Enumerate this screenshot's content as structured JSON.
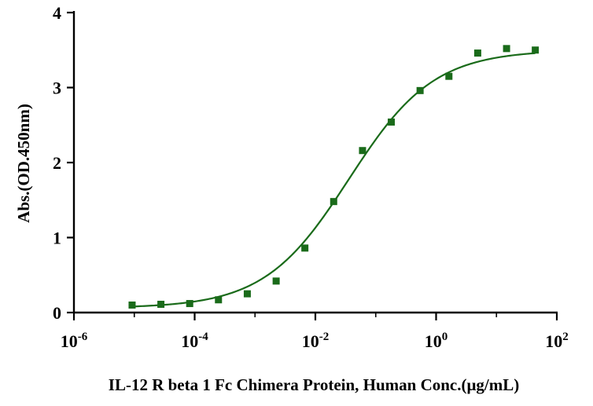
{
  "chart_data": {
    "type": "scatter",
    "xscale": "log",
    "xlim": [
      1e-06,
      100
    ],
    "ylim": [
      0,
      4
    ],
    "xlabel": "IL-12 R beta 1 Fc Chimera Protein, Human  Conc.(μg/mL)",
    "ylabel": "Abs.(OD.450nm)",
    "y_ticks": [
      "0",
      "1",
      "2",
      "3",
      "4"
    ],
    "x_ticks": [
      {
        "base": "10",
        "exp": "-6"
      },
      {
        "base": "10",
        "exp": "-4"
      },
      {
        "base": "10",
        "exp": "-2"
      },
      {
        "base": "10",
        "exp": "0"
      },
      {
        "base": "10",
        "exp": "2"
      }
    ],
    "x_tick_values": [
      1e-06,
      0.0001,
      0.01,
      1,
      100
    ],
    "colors": {
      "series": "#1a6b1a",
      "curve": "#1a6b1a",
      "axis": "#000000"
    },
    "series": [
      {
        "marker": "square",
        "x": [
          9.2e-06,
          2.76e-05,
          8.28e-05,
          0.000248,
          0.000745,
          0.00224,
          0.0067,
          0.0201,
          0.0604,
          0.181,
          0.543,
          1.63,
          4.89,
          14.7,
          44
        ],
        "y": [
          0.1,
          0.11,
          0.12,
          0.17,
          0.25,
          0.42,
          0.86,
          1.48,
          2.16,
          2.54,
          2.96,
          3.15,
          3.46,
          3.52,
          3.5
        ]
      }
    ],
    "fit_curve": {
      "model": "4PL",
      "bottom": 0.06,
      "top": 3.5,
      "ec50": 0.036,
      "hill": 0.62
    },
    "grid": false,
    "legend": "none"
  }
}
